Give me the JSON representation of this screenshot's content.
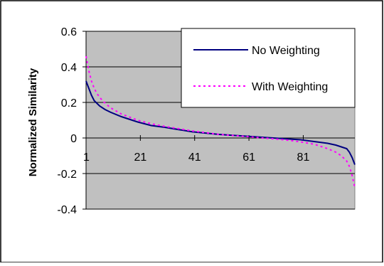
{
  "chart_data": {
    "type": "line",
    "title": "",
    "xlabel": "",
    "ylabel": "Normalized Similarity",
    "ylim": [
      -0.4,
      0.6
    ],
    "yticks": [
      "0.6",
      "0.4",
      "0.2",
      "0",
      "-0.2",
      "-0.4"
    ],
    "ytick_values": [
      0.6,
      0.4,
      0.2,
      0,
      -0.2,
      -0.4
    ],
    "xlim": [
      1,
      100
    ],
    "xticks": [
      "1",
      "21",
      "41",
      "61",
      "81"
    ],
    "xtick_values": [
      1,
      21,
      41,
      61,
      81
    ],
    "grid": true,
    "plot_background": "#c0c0c0",
    "legend_position": "top-right",
    "series": [
      {
        "name": "No Weighting",
        "color": "#000080",
        "style": "solid",
        "x": [
          1,
          2,
          3,
          4,
          6,
          8,
          10,
          14,
          20,
          25,
          30,
          40,
          50,
          60,
          70,
          75,
          80,
          85,
          90,
          93,
          95,
          97,
          98,
          99,
          100
        ],
        "y": [
          0.32,
          0.28,
          0.24,
          0.21,
          0.18,
          0.16,
          0.145,
          0.12,
          0.09,
          0.07,
          0.06,
          0.035,
          0.02,
          0.01,
          0.0,
          -0.005,
          -0.01,
          -0.02,
          -0.03,
          -0.04,
          -0.05,
          -0.06,
          -0.08,
          -0.11,
          -0.15
        ]
      },
      {
        "name": "With Weighting",
        "color": "#ff00ff",
        "style": "dotted",
        "x": [
          1,
          2,
          3,
          4,
          5,
          7,
          10,
          14,
          20,
          25,
          30,
          40,
          50,
          60,
          70,
          75,
          80,
          85,
          88,
          90,
          93,
          95,
          97,
          98,
          99,
          100
        ],
        "y": [
          0.46,
          0.38,
          0.32,
          0.28,
          0.25,
          0.21,
          0.17,
          0.135,
          0.1,
          0.08,
          0.065,
          0.04,
          0.02,
          0.008,
          -0.005,
          -0.012,
          -0.022,
          -0.035,
          -0.05,
          -0.06,
          -0.08,
          -0.1,
          -0.13,
          -0.16,
          -0.21,
          -0.28
        ]
      }
    ]
  }
}
